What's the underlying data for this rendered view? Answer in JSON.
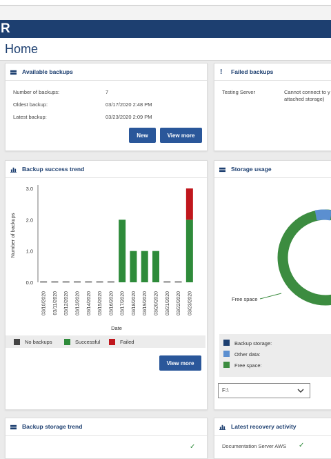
{
  "app": {
    "title_fragment": "R"
  },
  "page": {
    "title": "Home"
  },
  "available_backups": {
    "title": "Available backups",
    "rows": [
      {
        "label": "Number of backups:",
        "value": "7"
      },
      {
        "label": "Oldest backup:",
        "value": "03/17/2020 2:48 PM"
      },
      {
        "label": "Latest backup:",
        "value": "03/23/2020 2:09 PM"
      }
    ],
    "new_label": "New",
    "view_more_label": "View more"
  },
  "failed_backups": {
    "title": "Failed backups",
    "server": "Testing Server",
    "message_line1": "Cannot connect to y",
    "message_line2": "attached storage)"
  },
  "success_trend": {
    "title": "Backup success trend",
    "view_more_label": "View more",
    "legend": [
      {
        "label": "No backups",
        "color": "#444444"
      },
      {
        "label": "Successful",
        "color": "#2e8b3a"
      },
      {
        "label": "Failed",
        "color": "#c0171d"
      }
    ]
  },
  "storage_usage": {
    "title": "Storage usage",
    "free_space_callout": "Free space",
    "legend": [
      {
        "label": "Backup storage:",
        "color": "#1d3f70"
      },
      {
        "label": "Other data:",
        "color": "#5b8fd0"
      },
      {
        "label": "Free space:",
        "color": "#3c8c40"
      }
    ],
    "drive_value": "F:\\"
  },
  "storage_trend": {
    "title": "Backup storage trend"
  },
  "recovery_activity": {
    "title": "Latest recovery activity",
    "first_item": "Documentation Server AWS"
  },
  "chart_data": {
    "type": "bar",
    "ylabel": "Number of backups",
    "xlabel": "Date",
    "ylim": [
      0,
      3
    ],
    "yticks": [
      "0.0",
      "1.0",
      "2.0",
      "3.0"
    ],
    "categories": [
      "03/10/2020",
      "03/11/2020",
      "03/12/2020",
      "03/13/2020",
      "03/14/2020",
      "03/15/2020",
      "03/16/2020",
      "03/17/2020",
      "03/18/2020",
      "03/19/2020",
      "03/20/2020",
      "03/21/2020",
      "03/22/2020",
      "03/23/2020"
    ],
    "series": [
      {
        "name": "Successful",
        "color": "#2e8b3a",
        "values": [
          0,
          0,
          0,
          0,
          0,
          0,
          0,
          2,
          1,
          1,
          1,
          0,
          0,
          2
        ]
      },
      {
        "name": "Failed",
        "color": "#c0171d",
        "values": [
          0,
          0,
          0,
          0,
          0,
          0,
          0,
          0,
          0,
          0,
          0,
          0,
          0,
          1
        ]
      }
    ]
  }
}
